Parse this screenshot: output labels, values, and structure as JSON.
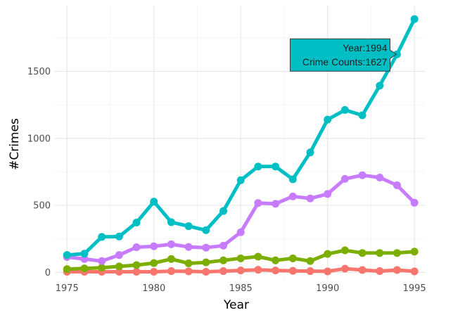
{
  "chart_data": {
    "type": "line",
    "title": "",
    "xlabel": "Year",
    "ylabel": "#Crimes",
    "x": [
      1975,
      1976,
      1977,
      1978,
      1979,
      1980,
      1981,
      1982,
      1983,
      1984,
      1985,
      1986,
      1987,
      1988,
      1989,
      1990,
      1991,
      1992,
      1993,
      1994,
      1995
    ],
    "xlim": [
      1974.3,
      1995.6
    ],
    "ylim": [
      -50,
      1990
    ],
    "xticks": [
      1975,
      1980,
      1985,
      1990,
      1995
    ],
    "yticks": [
      0,
      500,
      1000,
      1500
    ],
    "grid": true,
    "legend": "none",
    "series": [
      {
        "color": "#00BFC4",
        "values": [
          130,
          140,
          265,
          268,
          372,
          528,
          375,
          345,
          315,
          458,
          688,
          790,
          790,
          695,
          895,
          1140,
          1212,
          1172,
          1393,
          1627,
          1890
        ]
      },
      {
        "color": "#C77CFF",
        "values": [
          115,
          100,
          85,
          130,
          188,
          195,
          210,
          190,
          185,
          200,
          300,
          518,
          512,
          567,
          552,
          585,
          698,
          725,
          708,
          650,
          520
        ]
      },
      {
        "color": "#7CAE00",
        "values": [
          25,
          30,
          35,
          45,
          55,
          70,
          100,
          68,
          75,
          90,
          105,
          118,
          90,
          105,
          85,
          138,
          165,
          145,
          145,
          145,
          155
        ]
      },
      {
        "color": "#F8766D",
        "values": [
          5,
          5,
          5,
          5,
          5,
          5,
          10,
          8,
          5,
          10,
          15,
          20,
          15,
          12,
          10,
          8,
          28,
          18,
          10,
          18,
          8
        ]
      }
    ],
    "tooltip": {
      "line1": "Year:1994",
      "line2": "Crime Counts:1627",
      "background": "#00BFC4",
      "anchor_x": 1994,
      "anchor_y": 1627
    }
  }
}
